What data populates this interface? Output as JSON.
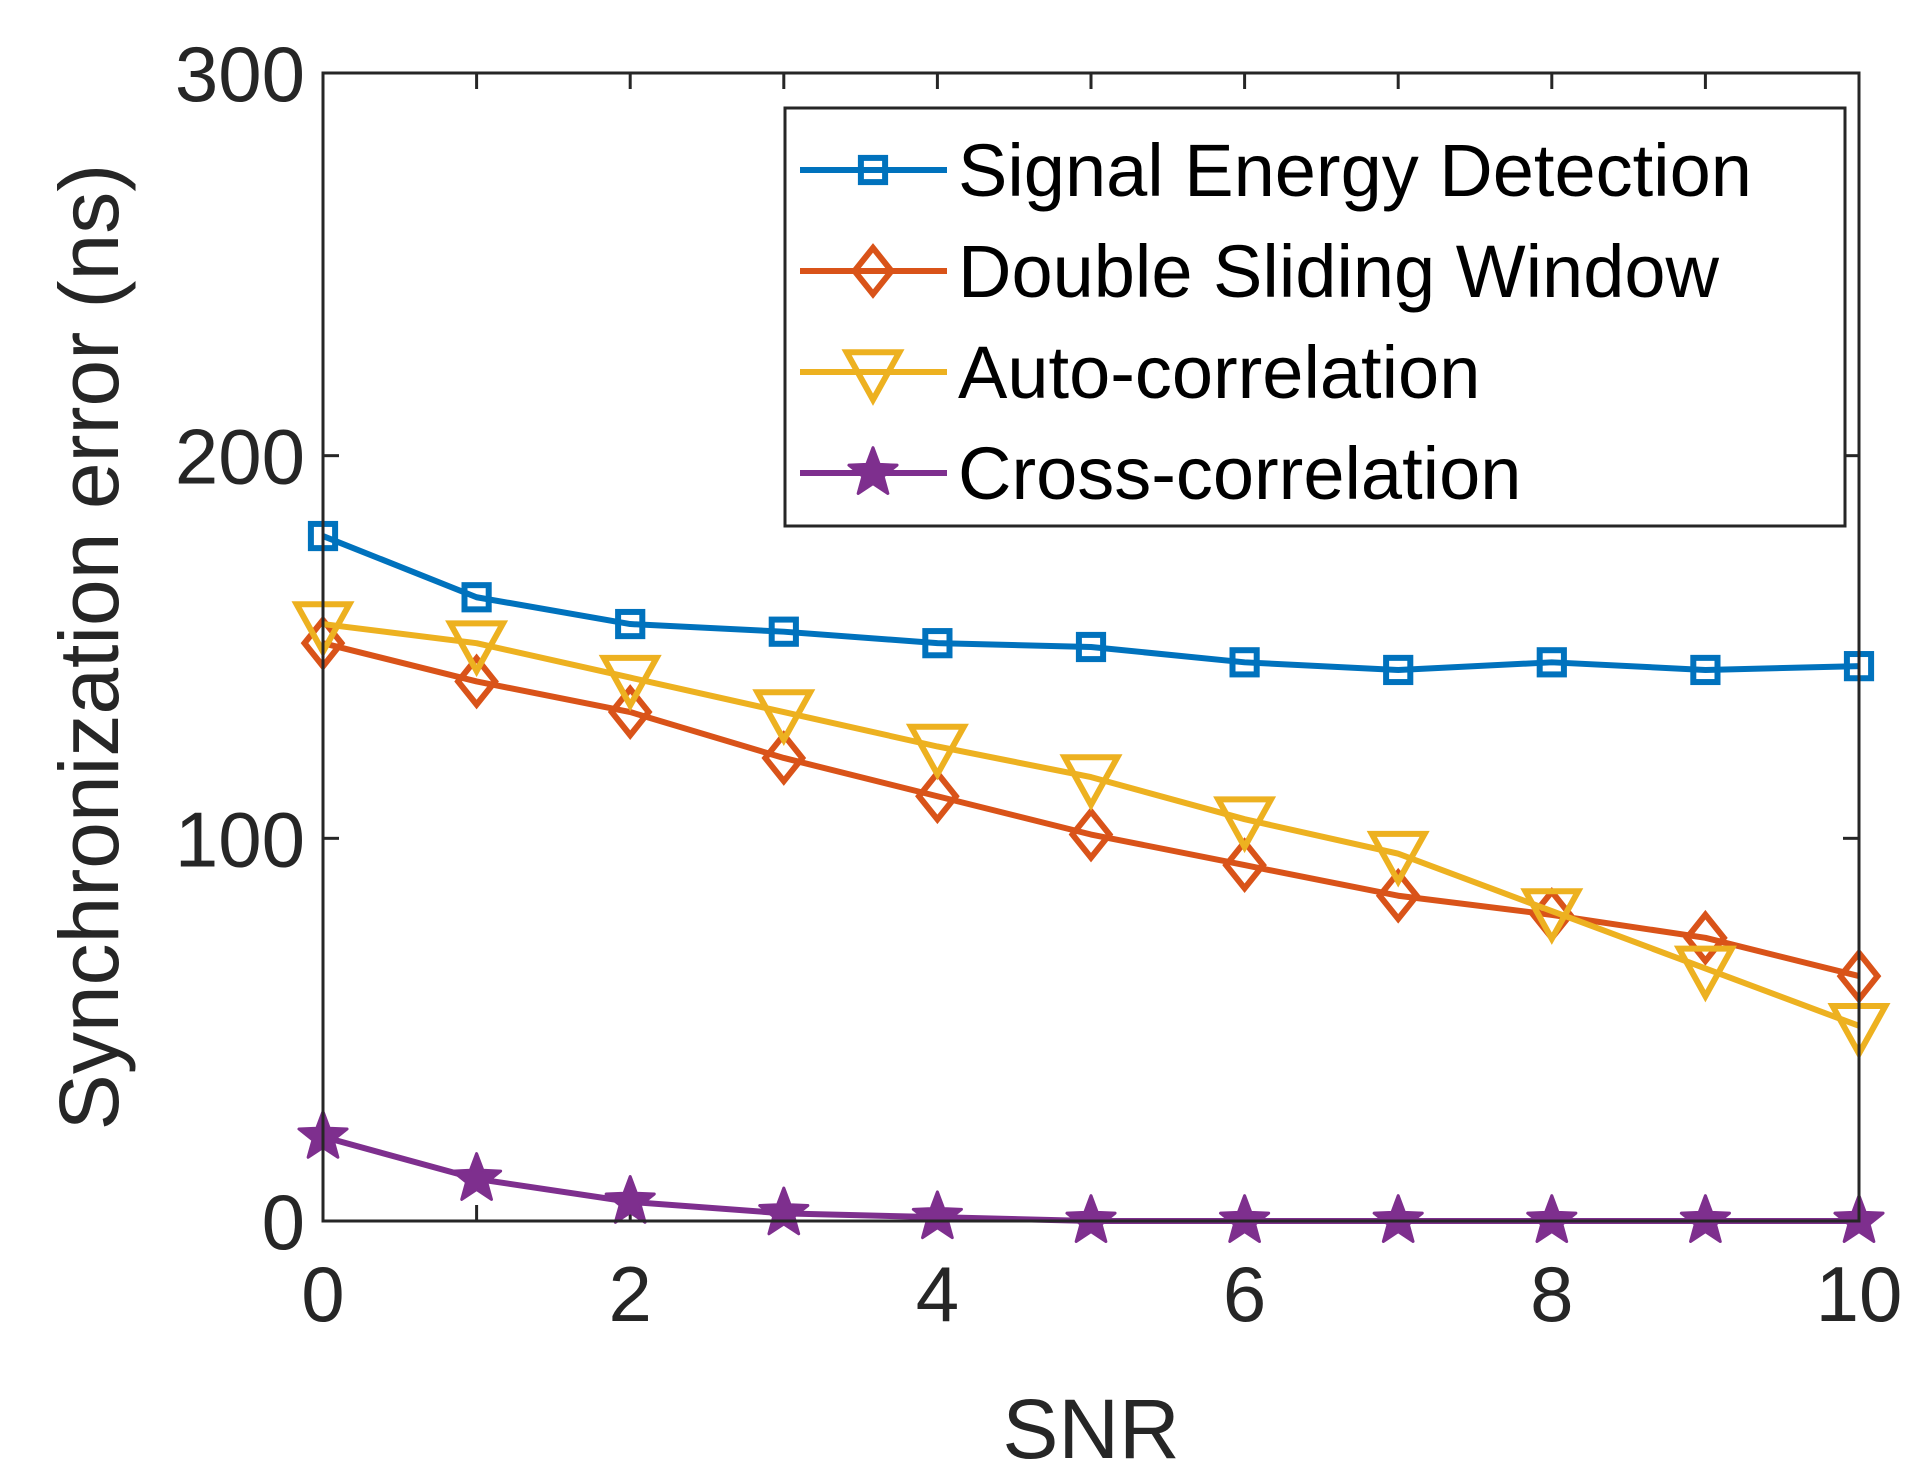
{
  "chart_data": {
    "type": "line",
    "title": "",
    "xlabel": "SNR",
    "ylabel": "Synchronization error (ns)",
    "xlim": [
      0,
      10
    ],
    "ylim": [
      0,
      300
    ],
    "xticks": [
      0,
      2,
      4,
      6,
      8,
      10
    ],
    "yticks": [
      0,
      100,
      200,
      300
    ],
    "grid": false,
    "legend_position": "top-right",
    "x": [
      0,
      1,
      2,
      3,
      4,
      5,
      6,
      7,
      8,
      9,
      10
    ],
    "series": [
      {
        "name": "Signal Energy Detection",
        "color": "#0072BD",
        "marker": "square",
        "values": [
          179,
          163,
          156,
          154,
          151,
          150,
          146,
          144,
          146,
          144,
          145
        ]
      },
      {
        "name": "Double Sliding Window",
        "color": "#D95319",
        "marker": "diamond",
        "values": [
          151,
          141,
          133,
          121,
          111,
          101,
          93,
          85,
          80,
          74,
          64
        ]
      },
      {
        "name": "Auto-correlation",
        "color": "#EDB120",
        "marker": "triangle-down",
        "values": [
          156,
          151,
          142,
          133,
          124,
          116,
          105,
          96,
          81,
          66,
          51
        ]
      },
      {
        "name": "Cross-correlation",
        "color": "#7E2F8E",
        "marker": "star",
        "values": [
          22,
          11,
          5,
          2,
          1,
          0,
          0,
          0,
          0,
          0,
          0
        ]
      }
    ]
  }
}
